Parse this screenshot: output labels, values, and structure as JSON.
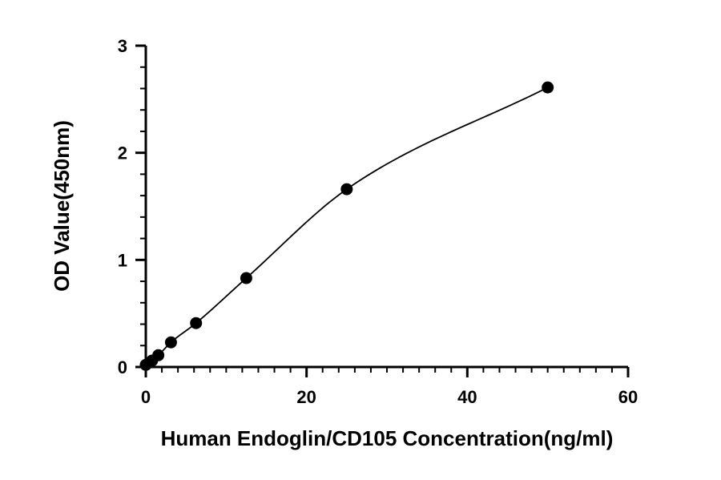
{
  "chart_data": {
    "type": "scatter",
    "title": "",
    "xlabel": "Human Endoglin/CD105 Concentration(ng/ml)",
    "ylabel": "OD Value(450nm)",
    "xlim": [
      0,
      60
    ],
    "ylim": [
      0,
      3
    ],
    "xticks": [
      0,
      20,
      40,
      60
    ],
    "xtick_labels": [
      "0",
      "20",
      "40",
      "60"
    ],
    "yticks": [
      0,
      1,
      2,
      3
    ],
    "ytick_labels": [
      "0",
      "1",
      "2",
      "3"
    ],
    "x_minor_step": 2,
    "y_minor_step": 0.2,
    "grid": false,
    "legend": "none",
    "fit_curve": true,
    "series": [
      {
        "x": [
          0,
          0.78,
          1.56,
          3.13,
          6.25,
          12.5,
          25,
          50
        ],
        "y": [
          0.02,
          0.06,
          0.11,
          0.23,
          0.41,
          0.83,
          1.66,
          2.61
        ]
      }
    ],
    "colors": {
      "marker": "#000000",
      "line": "#000000"
    }
  }
}
